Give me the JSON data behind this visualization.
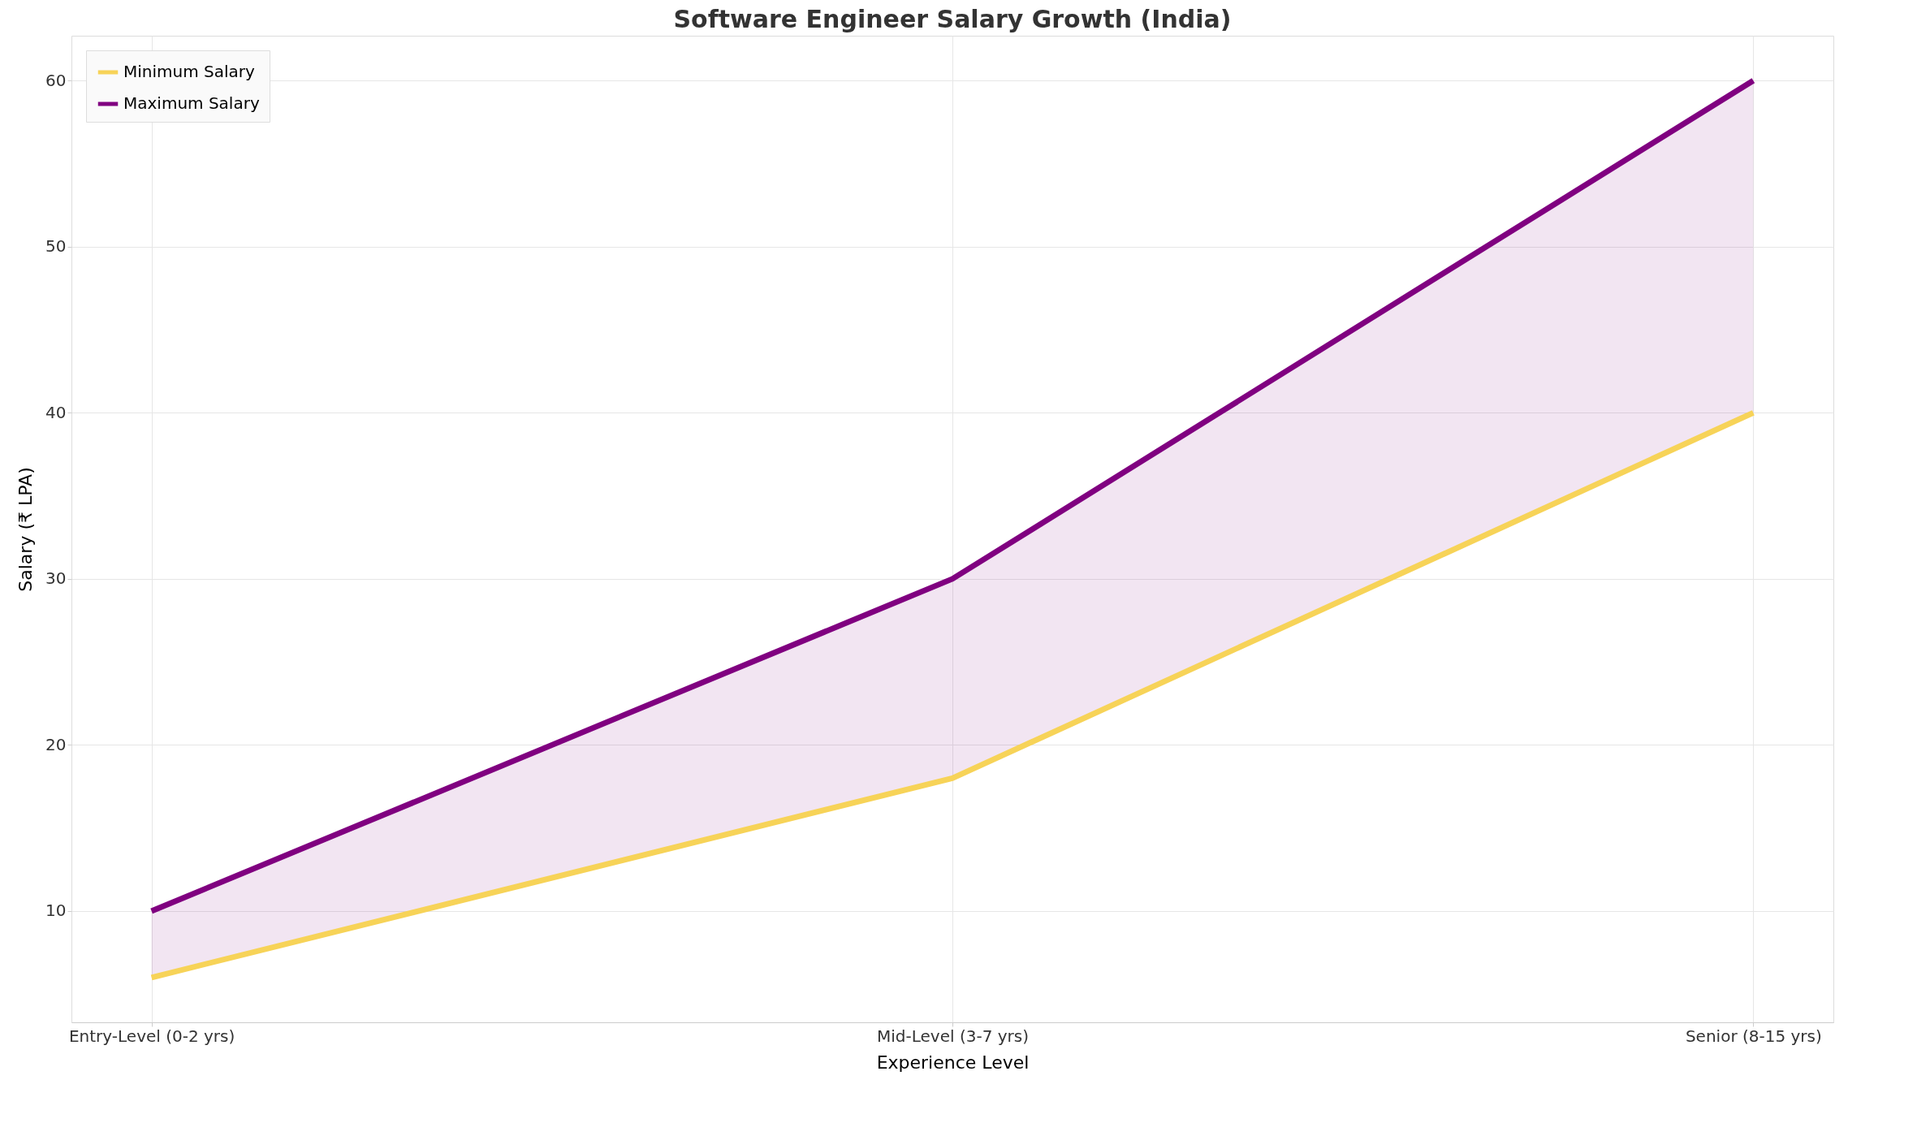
{
  "chart_data": {
    "type": "line",
    "title": "Software Engineer Salary Growth (India)",
    "xlabel": "Experience Level",
    "ylabel": "Salary (₹ LPA)",
    "categories": [
      "Entry-Level (0-2 yrs)",
      "Mid-Level (3-7 yrs)",
      "Senior (8-15 yrs)"
    ],
    "series": [
      {
        "name": "Minimum Salary",
        "color": "#f7d358",
        "values": [
          6,
          18,
          40
        ]
      },
      {
        "name": "Maximum Salary",
        "color": "#800080",
        "values": [
          10,
          30,
          60
        ],
        "lower": [
          6,
          18,
          40
        ],
        "upper": [
          10,
          30,
          60
        ]
      }
    ],
    "ylim": [
      3.3,
      62.7
    ],
    "yticks": [
      10,
      20,
      30,
      40,
      50,
      60
    ],
    "grid": true,
    "legend": "top left",
    "line_style": "solid"
  }
}
